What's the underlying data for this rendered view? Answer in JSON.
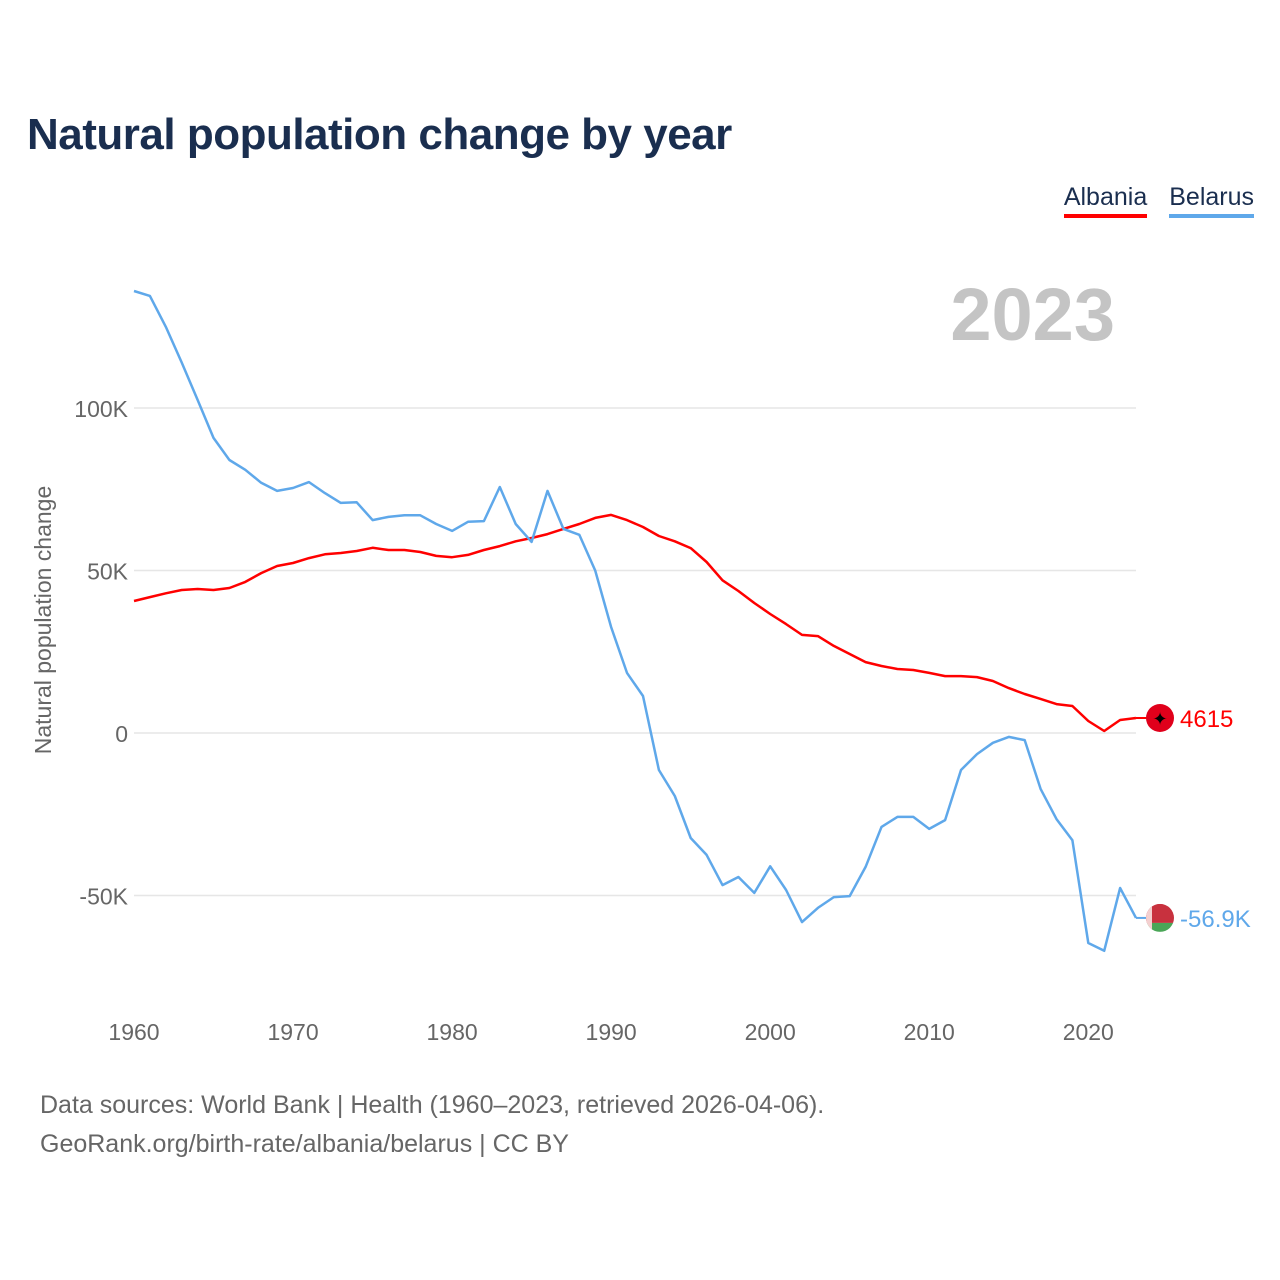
{
  "chart_data": {
    "type": "line",
    "title": "Natural population change by year",
    "xlabel": "",
    "ylabel": "Natural population change",
    "xlim": [
      1960,
      2023
    ],
    "ylim": [
      -80000,
      140000
    ],
    "grid": true,
    "legend_position": "top-right",
    "year_overlay": "2023",
    "x_ticks": [
      1960,
      1970,
      1980,
      1990,
      2000,
      2010,
      2020
    ],
    "y_ticks": [
      {
        "v": 100000,
        "label": "100K"
      },
      {
        "v": 50000,
        "label": "50K"
      },
      {
        "v": 0,
        "label": "0"
      },
      {
        "v": -50000,
        "label": "-50K"
      }
    ],
    "x_start": 1960,
    "series": [
      {
        "name": "Albania",
        "color": "#ff0000",
        "end_label": "4615",
        "values": [
          40600,
          41800,
          43000,
          44000,
          44300,
          44000,
          44600,
          46500,
          49200,
          51400,
          52300,
          53800,
          55000,
          55400,
          56000,
          57000,
          56300,
          56300,
          55700,
          54500,
          54100,
          54800,
          56300,
          57500,
          59000,
          60000,
          61200,
          62800,
          64300,
          66200,
          67100,
          65500,
          63400,
          60600,
          59000,
          56900,
          52600,
          47000,
          43700,
          40000,
          36600,
          33500,
          30200,
          29800,
          26800,
          24300,
          21800,
          20600,
          19700,
          19400,
          18500,
          17500,
          17500,
          17200,
          16000,
          13800,
          12000,
          10500,
          8900,
          8300,
          3700,
          600,
          4000,
          4615
        ]
      },
      {
        "name": "Belarus",
        "color": "#5fa8ea",
        "end_label": "-56.9K",
        "values": [
          136000,
          134500,
          125000,
          114000,
          102500,
          90800,
          84000,
          81000,
          77000,
          74500,
          75400,
          77200,
          73800,
          70800,
          71000,
          65500,
          66500,
          67000,
          67000,
          64300,
          62200,
          65000,
          65200,
          75700,
          64300,
          58800,
          74500,
          62800,
          61000,
          50000,
          32600,
          18500,
          11400,
          -11400,
          -19400,
          -32300,
          -37500,
          -46800,
          -44300,
          -49200,
          -41000,
          -48300,
          -58200,
          -53800,
          -50500,
          -50200,
          -41200,
          -28900,
          -25800,
          -25800,
          -29500,
          -26800,
          -11400,
          -6500,
          -3000,
          -1200,
          -2200,
          -17200,
          -26500,
          -33000,
          -64600,
          -67000,
          -47700,
          -56900
        ]
      }
    ]
  },
  "footer": {
    "line1": "Data sources: World Bank | Health (1960–2023, retrieved 2026-04-06).",
    "line2": "GeoRank.org/birth-rate/albania/belarus | CC BY"
  }
}
